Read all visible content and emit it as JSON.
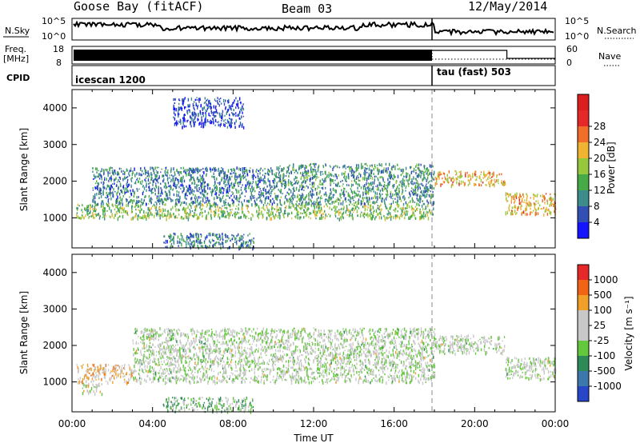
{
  "header": {
    "station": "Goose Bay (fitACF)",
    "beam": "Beam 03",
    "date": "12/May/2014"
  },
  "top_panels": {
    "nsky_label": "N.Sky",
    "nsky_ticks": [
      "10^5",
      "10^0"
    ],
    "nsearch_label": "N.Search",
    "nsearch_ticks": [
      "10^5",
      "10^0"
    ],
    "freq_label_1": "Freq.",
    "freq_label_2": "[MHz]",
    "freq_ticks": [
      "18",
      "8"
    ],
    "nave_label": "Nave",
    "nave_ticks": [
      "60",
      "0"
    ],
    "cpid_label": "CPID",
    "cpid_mode_1": "icescan 1200",
    "cpid_mode_2": "tau (fast) 503"
  },
  "axes": {
    "ylabel": "Slant Range [km]",
    "xlabel": "Time UT",
    "y_ticks": [
      "1000",
      "2000",
      "3000",
      "4000"
    ],
    "x_ticks": [
      "00:00",
      "04:00",
      "08:00",
      "12:00",
      "16:00",
      "20:00",
      "00:00"
    ]
  },
  "colorbars": {
    "power": {
      "title": "Power [dB]",
      "labels": [
        "4",
        "8",
        "12",
        "16",
        "20",
        "24",
        "28"
      ],
      "colors": [
        "#1414ff",
        "#3250b4",
        "#3c8c8c",
        "#46aa46",
        "#96c83c",
        "#f0b432",
        "#f06e28",
        "#e62828",
        "#dc1e1e"
      ]
    },
    "velocity": {
      "title": "Velocity [m s⁻¹]",
      "labels": [
        "1000",
        "500",
        "100",
        "25",
        "-25",
        "-100",
        "-500",
        "-1000"
      ],
      "colors": [
        "#2846c8",
        "#3c78aa",
        "#2e8b57",
        "#64c83c",
        "#c8c8c8",
        "#c8c8c8",
        "#f0a028",
        "#f06414",
        "#e62828"
      ]
    }
  },
  "chart_data": {
    "type": "heatmap",
    "title": "Goose Bay (fitACF) Beam 03 12/May/2014",
    "xlabel": "Time UT",
    "ylabel": "Slant Range [km]",
    "xlim": [
      0,
      24
    ],
    "ylim": [
      180,
      4500
    ],
    "mode_switch_hour": 18.0,
    "nave_step_hour": 21.6,
    "panels": [
      {
        "name": "Power",
        "units": "dB",
        "scale": [
          0,
          32
        ],
        "bands": [
          {
            "t_start": 0.2,
            "t_end": 18.0,
            "range_km": [
              1000,
              1400
            ],
            "value": 14
          },
          {
            "t_start": 1.0,
            "t_end": 10.0,
            "range_km": [
              1400,
              2400
            ],
            "value": 8
          },
          {
            "t_start": 10.0,
            "t_end": 18.0,
            "range_km": [
              1400,
              2500
            ],
            "value": 10
          },
          {
            "t_start": 18.0,
            "t_end": 21.5,
            "range_km": [
              1900,
              2300
            ],
            "value": 20
          },
          {
            "t_start": 21.5,
            "t_end": 24.0,
            "range_km": [
              1100,
              1700
            ],
            "value": 20
          },
          {
            "t_start": 4.5,
            "t_end": 9.0,
            "range_km": [
              200,
              600
            ],
            "value": 8
          },
          {
            "t_start": 5.0,
            "t_end": 8.5,
            "range_km": [
              3500,
              4300
            ],
            "value": 4
          }
        ]
      },
      {
        "name": "Velocity",
        "units": "m s-1",
        "scale": [
          -1000,
          1000
        ],
        "bands": [
          {
            "t_start": 0.2,
            "t_end": 3.0,
            "range_km": [
              1000,
              1500
            ],
            "value": 300
          },
          {
            "t_start": 3.0,
            "t_end": 18.0,
            "range_km": [
              1000,
              2500
            ],
            "value": 0
          },
          {
            "t_start": 18.0,
            "t_end": 21.5,
            "range_km": [
              1800,
              2300
            ],
            "value": 0
          },
          {
            "t_start": 21.5,
            "t_end": 24.0,
            "range_km": [
              1100,
              1700
            ],
            "value": 0
          },
          {
            "t_start": 4.5,
            "t_end": 9.0,
            "range_km": [
              200,
              600
            ],
            "value": -200
          },
          {
            "t_start": 0.5,
            "t_end": 1.5,
            "range_km": [
              700,
              1000
            ],
            "value": 60
          }
        ]
      }
    ]
  }
}
